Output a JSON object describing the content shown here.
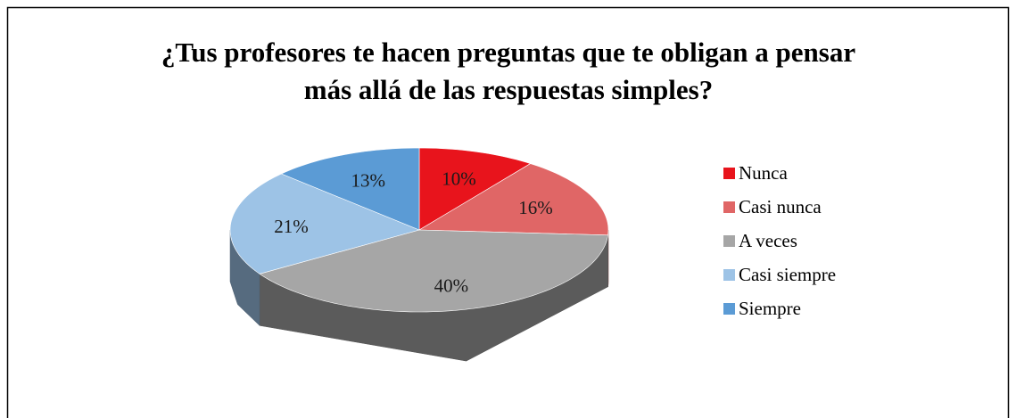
{
  "chart_data": {
    "type": "pie",
    "title": [
      "¿Tus profesores te hacen preguntas que te obligan a pensar",
      "más allá de las respuestas simples?"
    ],
    "categories": [
      "Nunca",
      "Casi nunca",
      "A veces",
      "Casi siempre",
      "Siempre"
    ],
    "values": [
      10,
      16,
      40,
      21,
      13
    ],
    "value_labels": [
      "10%",
      "16%",
      "40%",
      "21%",
      "13%"
    ],
    "colors": [
      "#e8141c",
      "#e06666",
      "#a6a6a6",
      "#9dc3e6",
      "#5b9bd5"
    ],
    "legend": "right"
  }
}
